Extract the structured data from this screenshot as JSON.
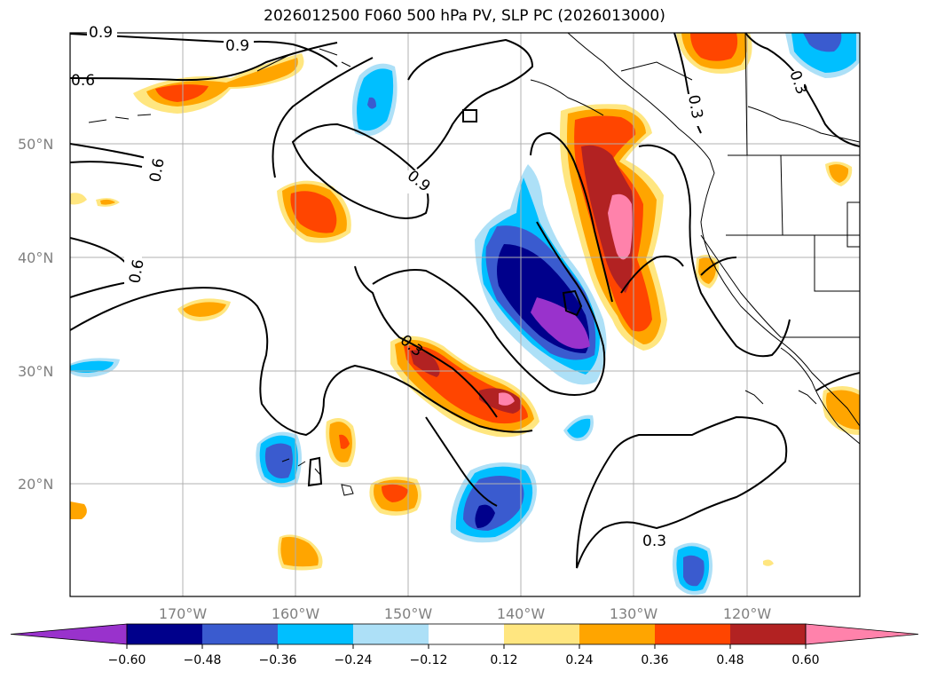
{
  "title": "2026012500 F060 500 hPa PV, SLP PC (2026013000)",
  "map": {
    "lat_labels": [
      "50°N",
      "40°N",
      "30°N",
      "20°N"
    ],
    "lon_labels": [
      "170°W",
      "160°W",
      "150°W",
      "140°W",
      "130°W",
      "120°W"
    ],
    "contour_labels": [
      {
        "id": "c1",
        "text": "0.9"
      },
      {
        "id": "c2",
        "text": "0.9"
      },
      {
        "id": "c3",
        "text": "0.9"
      },
      {
        "id": "c4",
        "text": "0.6"
      },
      {
        "id": "c5",
        "text": "0.6"
      },
      {
        "id": "c6",
        "text": "0.6"
      },
      {
        "id": "c7",
        "text": "0.3"
      },
      {
        "id": "c8",
        "text": "0.3"
      },
      {
        "id": "c9",
        "text": "0.3"
      },
      {
        "id": "c10",
        "text": "0.3"
      }
    ]
  },
  "colorbar": {
    "colors": [
      "#9932CC",
      "#00008B",
      "#3A5BCF",
      "#00BFFF",
      "#ADE0F7",
      "#FFFFFF",
      "#FFE680",
      "#FFA500",
      "#FF4500",
      "#B22222",
      "#FF82AB"
    ],
    "tick_labels": [
      "−0.60",
      "−0.48",
      "−0.36",
      "−0.24",
      "−0.12",
      "0.12",
      "0.24",
      "0.36",
      "0.48",
      "0.60"
    ]
  },
  "colors": {
    "frame": "#000000",
    "grid": "#b0b0b0",
    "axis_label": "#808080"
  }
}
